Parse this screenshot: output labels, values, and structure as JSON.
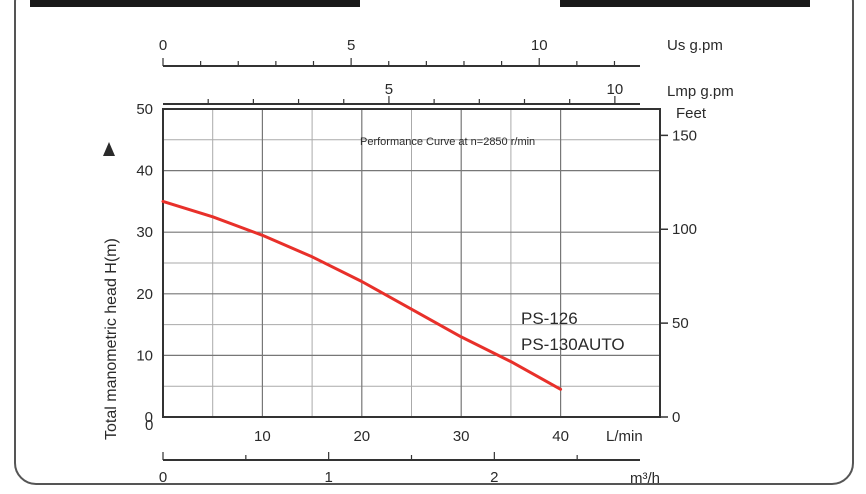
{
  "chart_data": {
    "type": "line",
    "title": "Performance Curve at n=2850 r/min",
    "ylabel": "Total manometric head H(m)",
    "grid": true,
    "series": [
      {
        "name": "PS-126 PS-130AUTO",
        "color": "#e8302a",
        "x": [
          0,
          5,
          10,
          15,
          20,
          25,
          30,
          35,
          40
        ],
        "y": [
          35,
          32.5,
          29.5,
          26,
          22,
          17.5,
          13,
          9,
          4.5
        ]
      }
    ],
    "series_labels": [
      "PS-126",
      "PS-130AUTO"
    ],
    "axes": {
      "bottom": {
        "unit": "L/min",
        "range": [
          0,
          50
        ],
        "ticks": [
          0,
          10,
          20,
          30,
          40
        ]
      },
      "left": {
        "range": [
          0,
          50
        ],
        "ticks": [
          0,
          10,
          20,
          30,
          40,
          50
        ]
      },
      "right": {
        "unit": "Feet",
        "ticks": [
          0,
          50,
          100,
          150
        ]
      },
      "top_us": {
        "unit": "Us g.pm",
        "ticks": [
          0,
          5,
          10
        ]
      },
      "top_lmp": {
        "unit": "Lmp g.pm",
        "ticks": [
          5,
          10
        ]
      },
      "bottom_m3h": {
        "unit": "m³/h",
        "ticks": [
          0,
          1,
          2
        ]
      }
    },
    "minor_grid_x": [
      5,
      15,
      25,
      35
    ],
    "minor_grid_y": [
      5,
      15,
      25,
      45
    ]
  }
}
